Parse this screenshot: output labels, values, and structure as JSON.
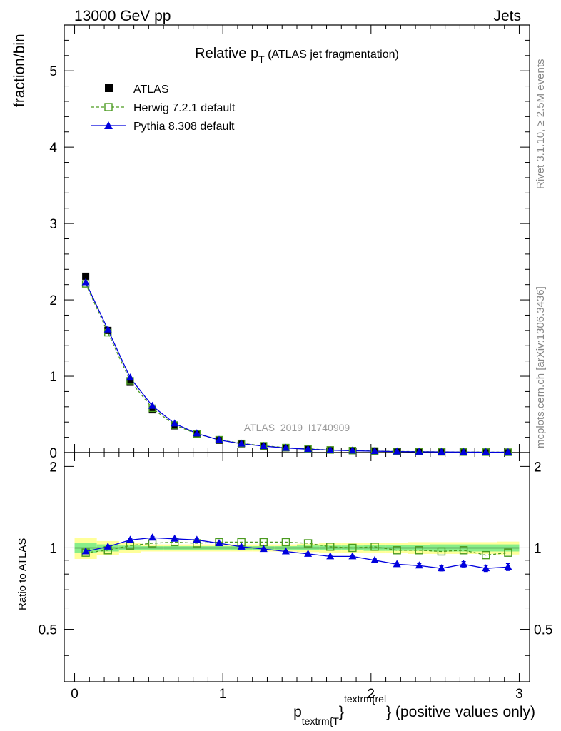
{
  "header": {
    "left": "13000 GeV pp",
    "right": "Jets"
  },
  "side": {
    "rivet": "Rivet 3.1.10, ≥ 2.5M events",
    "mcplots": "mcplots.cern.ch [arXiv:1306.3436]"
  },
  "colors": {
    "data": "#000000",
    "herwig": "#4a9a1e",
    "pythia": "#0000dd",
    "band_stat": "#88ee88",
    "band_tot": "#ffff99"
  },
  "chart_data": {
    "type": "line",
    "title_main": "Relative p",
    "title_sub": "T",
    "title_rest": " (ATLAS jet fragmentation)",
    "watermark": "ATLAS_2019_I1740909",
    "ylabel": "fraction/bin",
    "ratio_ylabel": "Ratio to ATLAS",
    "xlabel": {
      "p": "p",
      "sub": "textrm{T",
      "sup": "textrm{rel",
      "rest": "} (positive values only)"
    },
    "xlim": [
      -0.07,
      3.07
    ],
    "ylim": [
      0,
      5.6
    ],
    "ratio_ylim": [
      0.32,
      2.25
    ],
    "xticks": [
      "0",
      "1",
      "2",
      "3"
    ],
    "yticks": [
      "0",
      "1",
      "2",
      "3",
      "4",
      "5"
    ],
    "ratio_yticks": [
      "0.5",
      "1",
      "2"
    ],
    "x": [
      0.075,
      0.225,
      0.375,
      0.525,
      0.675,
      0.825,
      0.975,
      1.125,
      1.275,
      1.425,
      1.575,
      1.725,
      1.875,
      2.025,
      2.175,
      2.325,
      2.475,
      2.625,
      2.775,
      2.925
    ],
    "series": [
      {
        "name": "ATLAS",
        "marker": "filled-square",
        "values": [
          2.31,
          1.6,
          0.92,
          0.56,
          0.35,
          0.24,
          0.16,
          0.115,
          0.085,
          0.062,
          0.046,
          0.034,
          0.026,
          0.02,
          0.015,
          0.012,
          0.009,
          0.007,
          0.006,
          0.005
        ],
        "ratio": [
          1,
          1,
          1,
          1,
          1,
          1,
          1,
          1,
          1,
          1,
          1,
          1,
          1,
          1,
          1,
          1,
          1,
          1,
          1,
          1
        ]
      },
      {
        "name": "Herwig 7.2.1 default",
        "marker": "open-square",
        "values": [
          2.21,
          1.57,
          0.94,
          0.58,
          0.36,
          0.245,
          0.168,
          0.12,
          0.089,
          0.065,
          0.048,
          0.034,
          0.026,
          0.02,
          0.015,
          0.012,
          0.009,
          0.007,
          0.006,
          0.005
        ],
        "ratio": [
          0.96,
          0.98,
          1.02,
          1.04,
          1.05,
          1.04,
          1.05,
          1.05,
          1.05,
          1.05,
          1.04,
          1.01,
          1.0,
          1.01,
          0.98,
          0.98,
          0.97,
          0.98,
          0.94,
          0.96
        ]
      },
      {
        "name": "Pythia 8.308 default",
        "marker": "filled-triangle",
        "values": [
          2.23,
          1.61,
          0.98,
          0.61,
          0.38,
          0.25,
          0.165,
          0.116,
          0.084,
          0.06,
          0.044,
          0.032,
          0.024,
          0.018,
          0.013,
          0.01,
          0.0075,
          0.006,
          0.005,
          0.004
        ],
        "ratio": [
          0.97,
          1.01,
          1.07,
          1.09,
          1.08,
          1.07,
          1.04,
          1.01,
          0.99,
          0.97,
          0.95,
          0.93,
          0.93,
          0.9,
          0.87,
          0.86,
          0.84,
          0.87,
          0.84,
          0.85
        ],
        "ratio_err": [
          0.01,
          0.01,
          0.01,
          0.01,
          0.01,
          0.01,
          0.01,
          0.01,
          0.01,
          0.01,
          0.01,
          0.01,
          0.01,
          0.01,
          0.012,
          0.015,
          0.018,
          0.02,
          0.022,
          0.025
        ]
      }
    ],
    "band_stat": [
      0.04,
      0.03,
      0.02,
      0.015,
      0.015,
      0.015,
      0.015,
      0.015,
      0.015,
      0.015,
      0.02,
      0.02,
      0.02,
      0.025,
      0.025,
      0.025,
      0.03,
      0.03,
      0.03,
      0.03
    ],
    "band_tot": [
      0.09,
      0.06,
      0.04,
      0.03,
      0.03,
      0.03,
      0.03,
      0.03,
      0.03,
      0.03,
      0.035,
      0.04,
      0.04,
      0.045,
      0.045,
      0.05,
      0.05,
      0.05,
      0.05,
      0.055
    ]
  }
}
